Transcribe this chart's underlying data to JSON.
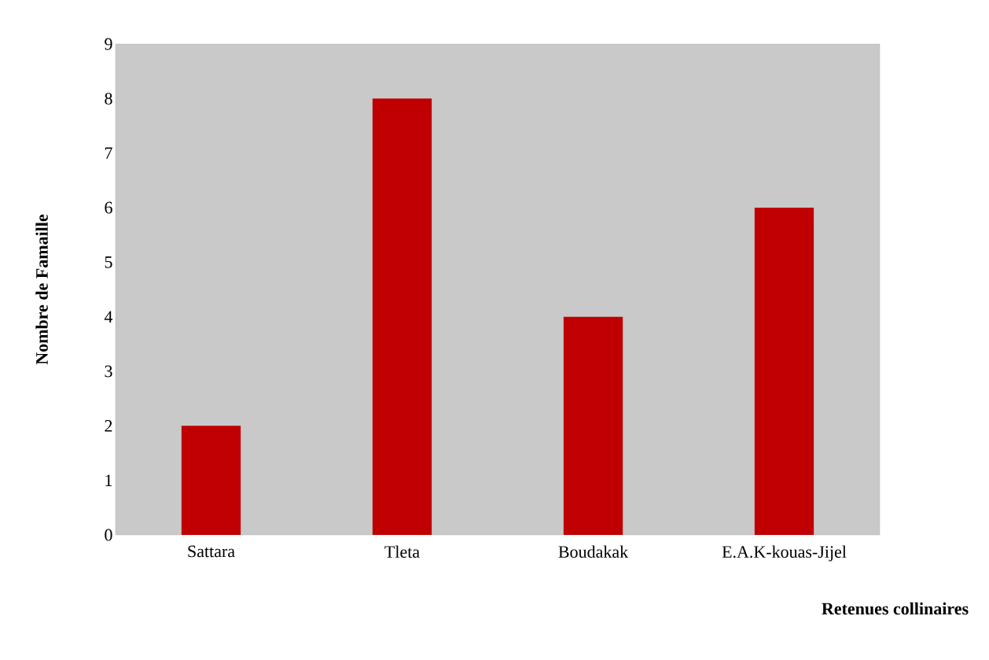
{
  "chart_data": {
    "type": "bar",
    "xlabel": "Retenues collinaires",
    "ylabel": "Nombre de Famaille",
    "categories": [
      "Sattara",
      "Tleta",
      "Boudakak",
      "E.A.K-kouas-Jijel"
    ],
    "values": [
      2,
      8,
      4,
      6
    ],
    "color": "#c00000",
    "ylim": [
      0,
      9
    ],
    "yticks": [
      0,
      1,
      2,
      3,
      4,
      5,
      6,
      7,
      8,
      9
    ],
    "grid": false
  }
}
